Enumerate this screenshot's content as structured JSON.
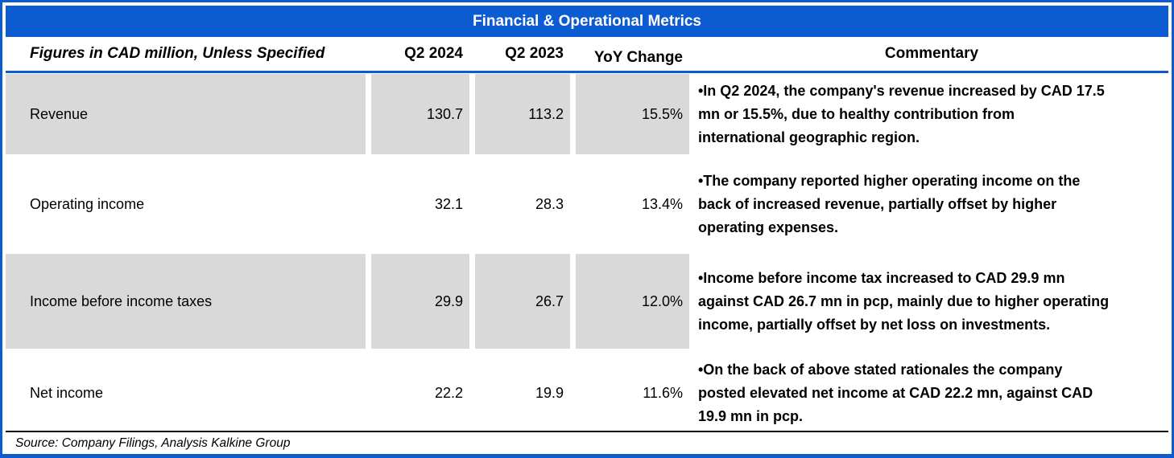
{
  "title": "Financial & Operational Metrics",
  "headers": {
    "metric": "Figures in CAD million, Unless Specified",
    "q2_2024": "Q2 2024",
    "q2_2023": "Q2 2023",
    "yoy_change": "YoY Change",
    "commentary": "Commentary"
  },
  "rows": [
    {
      "metric": "Revenue",
      "q2_2024": "130.7",
      "q2_2023": "113.2",
      "yoy": "15.5%",
      "commentary": "•In Q2 2024, the company's revenue increased by CAD 17.5\nmn or 15.5%, due to healthy contribution from\ninternational geographic region."
    },
    {
      "metric": "Operating income",
      "q2_2024": "32.1",
      "q2_2023": "28.3",
      "yoy": "13.4%",
      "commentary": "•The company reported higher operating income on the\nback of increased revenue, partially offset by higher\noperating expenses."
    },
    {
      "metric": "Income before income taxes",
      "q2_2024": "29.9",
      "q2_2023": "26.7",
      "yoy": "12.0%",
      "commentary": "•Income before income tax increased to CAD 29.9 mn\nagainst CAD 26.7 mn in pcp, mainly due to higher operating\nincome, partially offset by net loss on investments."
    },
    {
      "metric": "Net income",
      "q2_2024": "22.2",
      "q2_2023": "19.9",
      "yoy": "11.6%",
      "commentary": "•On the back of above stated rationales the company\nposted elevated net income at CAD 22.2 mn, against CAD\n19.9 mn in pcp."
    }
  ],
  "source": "Source: Company Filings, Analysis Kalkine Group",
  "colors": {
    "accent_blue": "#0d5bd1",
    "row_shade": "#d9d9d9",
    "title_text": "#ffffff"
  },
  "chart_data": {
    "type": "table",
    "title": "Financial & Operational Metrics",
    "unit": "CAD million",
    "columns": [
      "Q2 2024",
      "Q2 2023",
      "YoY Change"
    ],
    "metrics": [
      "Revenue",
      "Operating income",
      "Income before income taxes",
      "Net income"
    ],
    "values_q2_2024": [
      130.7,
      32.1,
      29.9,
      22.2
    ],
    "values_q2_2023": [
      113.2,
      28.3,
      26.7,
      19.9
    ],
    "yoy_change_pct": [
      15.5,
      13.4,
      12.0,
      11.6
    ]
  }
}
